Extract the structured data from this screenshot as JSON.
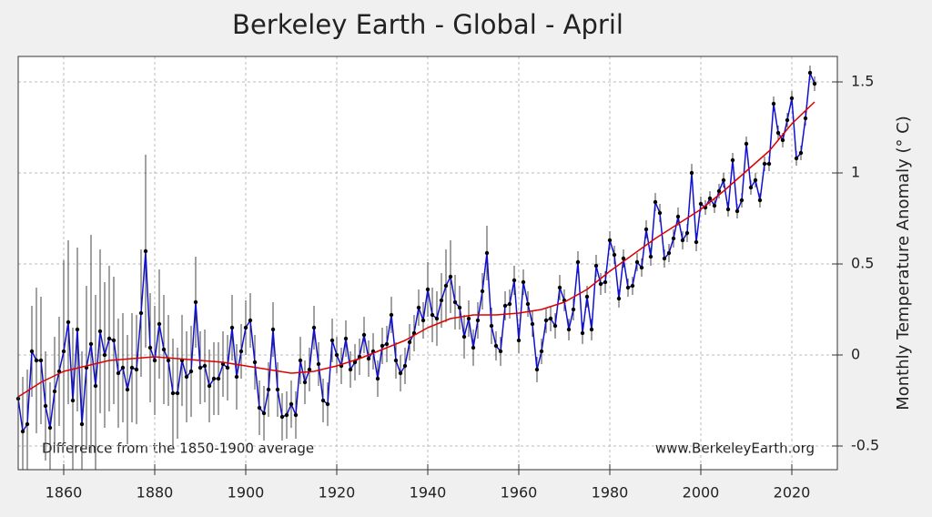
{
  "chart_data": {
    "type": "line",
    "title": "Berkeley Earth - Global - April",
    "y_label": "Monthly Temperature Anomaly (° C)",
    "annotations": [
      "Difference from the 1850-1900 average",
      "www.BerkeleyEarth.org"
    ],
    "xlim": [
      1850,
      2030
    ],
    "ylim": [
      -0.63,
      1.64
    ],
    "xticks": [
      1860,
      1880,
      1900,
      1920,
      1940,
      1960,
      1980,
      2000,
      2020
    ],
    "yticks": [
      -0.5,
      0,
      0.5,
      1,
      1.5
    ],
    "grid": true,
    "x": [
      1850,
      1851,
      1852,
      1853,
      1854,
      1855,
      1856,
      1857,
      1858,
      1859,
      1860,
      1861,
      1862,
      1863,
      1864,
      1865,
      1866,
      1867,
      1868,
      1869,
      1870,
      1871,
      1872,
      1873,
      1874,
      1875,
      1876,
      1877,
      1878,
      1879,
      1880,
      1881,
      1882,
      1883,
      1884,
      1885,
      1886,
      1887,
      1888,
      1889,
      1890,
      1891,
      1892,
      1893,
      1894,
      1895,
      1896,
      1897,
      1898,
      1899,
      1900,
      1901,
      1902,
      1903,
      1904,
      1905,
      1906,
      1907,
      1908,
      1909,
      1910,
      1911,
      1912,
      1913,
      1914,
      1915,
      1916,
      1917,
      1918,
      1919,
      1920,
      1921,
      1922,
      1923,
      1924,
      1925,
      1926,
      1927,
      1928,
      1929,
      1930,
      1931,
      1932,
      1933,
      1934,
      1935,
      1936,
      1937,
      1938,
      1939,
      1940,
      1941,
      1942,
      1943,
      1944,
      1945,
      1946,
      1947,
      1948,
      1949,
      1950,
      1951,
      1952,
      1953,
      1954,
      1955,
      1956,
      1957,
      1958,
      1959,
      1960,
      1961,
      1962,
      1963,
      1964,
      1965,
      1966,
      1967,
      1968,
      1969,
      1970,
      1971,
      1972,
      1973,
      1974,
      1975,
      1976,
      1977,
      1978,
      1979,
      1980,
      1981,
      1982,
      1983,
      1984,
      1985,
      1986,
      1987,
      1988,
      1989,
      1990,
      1991,
      1992,
      1993,
      1994,
      1995,
      1996,
      1997,
      1998,
      1999,
      2000,
      2001,
      2002,
      2003,
      2004,
      2005,
      2006,
      2007,
      2008,
      2009,
      2010,
      2011,
      2012,
      2013,
      2014,
      2015,
      2016,
      2017,
      2018,
      2019,
      2020,
      2021,
      2022,
      2023,
      2024,
      2025
    ],
    "series": [
      {
        "color": "#1010d0",
        "values": [
          -0.24,
          -0.42,
          -0.38,
          0.02,
          -0.03,
          -0.03,
          -0.28,
          -0.4,
          -0.2,
          -0.09,
          0.02,
          0.18,
          -0.25,
          0.14,
          -0.38,
          -0.07,
          0.06,
          -0.17,
          0.13,
          0.0,
          0.09,
          0.08,
          -0.1,
          -0.07,
          -0.19,
          -0.07,
          -0.08,
          0.23,
          0.57,
          0.04,
          -0.03,
          0.17,
          0.03,
          -0.03,
          -0.21,
          -0.21,
          -0.03,
          -0.12,
          -0.09,
          0.29,
          -0.07,
          -0.06,
          -0.17,
          -0.13,
          -0.13,
          -0.05,
          -0.07,
          0.15,
          -0.12,
          0.02,
          0.15,
          0.19,
          -0.04,
          -0.29,
          -0.32,
          -0.19,
          0.14,
          -0.19,
          -0.34,
          -0.33,
          -0.27,
          -0.33,
          -0.03,
          -0.15,
          -0.08,
          0.15,
          -0.05,
          -0.25,
          -0.27,
          0.08,
          0.0,
          -0.06,
          0.09,
          -0.08,
          -0.04,
          -0.01,
          0.11,
          -0.02,
          0.02,
          -0.13,
          0.05,
          0.06,
          0.22,
          -0.03,
          -0.1,
          -0.06,
          0.07,
          0.12,
          0.26,
          0.19,
          0.36,
          0.22,
          0.2,
          0.3,
          0.38,
          0.43,
          0.29,
          0.26,
          0.1,
          0.2,
          0.04,
          0.19,
          0.35,
          0.56,
          0.16,
          0.05,
          0.02,
          0.27,
          0.28,
          0.41,
          0.08,
          0.4,
          0.28,
          0.17,
          -0.08,
          0.02,
          0.19,
          0.2,
          0.16,
          0.37,
          0.3,
          0.14,
          0.25,
          0.51,
          0.12,
          0.32,
          0.14,
          0.49,
          0.39,
          0.4,
          0.63,
          0.55,
          0.31,
          0.53,
          0.37,
          0.38,
          0.51,
          0.48,
          0.69,
          0.54,
          0.84,
          0.78,
          0.53,
          0.56,
          0.64,
          0.76,
          0.63,
          0.67,
          1.0,
          0.62,
          0.83,
          0.81,
          0.86,
          0.82,
          0.9,
          0.96,
          0.8,
          1.07,
          0.79,
          0.85,
          1.16,
          0.92,
          0.96,
          0.85,
          1.05,
          1.05,
          1.38,
          1.22,
          1.18,
          1.29,
          1.41,
          1.08,
          1.11,
          1.3,
          1.55,
          1.49
        ],
        "errors": [
          0.35,
          0.3,
          0.3,
          0.25,
          0.4,
          0.35,
          0.3,
          0.25,
          0.3,
          0.3,
          0.5,
          0.45,
          0.4,
          0.45,
          0.4,
          0.45,
          0.6,
          0.5,
          0.45,
          0.4,
          0.4,
          0.35,
          0.3,
          0.3,
          0.3,
          0.3,
          0.3,
          0.35,
          0.53,
          0.3,
          0.3,
          0.3,
          0.3,
          0.25,
          0.3,
          0.25,
          0.25,
          0.25,
          0.25,
          0.25,
          0.2,
          0.2,
          0.2,
          0.2,
          0.2,
          0.18,
          0.18,
          0.18,
          0.18,
          0.15,
          0.15,
          0.15,
          0.15,
          0.15,
          0.15,
          0.15,
          0.15,
          0.15,
          0.13,
          0.13,
          0.13,
          0.13,
          0.13,
          0.12,
          0.12,
          0.12,
          0.12,
          0.12,
          0.12,
          0.12,
          0.1,
          0.1,
          0.1,
          0.1,
          0.1,
          0.1,
          0.1,
          0.1,
          0.1,
          0.1,
          0.1,
          0.1,
          0.1,
          0.1,
          0.1,
          0.1,
          0.1,
          0.1,
          0.1,
          0.1,
          0.15,
          0.15,
          0.15,
          0.15,
          0.2,
          0.2,
          0.15,
          0.12,
          0.12,
          0.1,
          0.1,
          0.1,
          0.1,
          0.15,
          0.1,
          0.08,
          0.08,
          0.08,
          0.08,
          0.08,
          0.07,
          0.07,
          0.07,
          0.07,
          0.07,
          0.07,
          0.07,
          0.07,
          0.07,
          0.07,
          0.06,
          0.06,
          0.06,
          0.06,
          0.06,
          0.06,
          0.06,
          0.06,
          0.06,
          0.06,
          0.05,
          0.05,
          0.05,
          0.05,
          0.05,
          0.05,
          0.05,
          0.05,
          0.05,
          0.05,
          0.05,
          0.05,
          0.05,
          0.05,
          0.05,
          0.05,
          0.05,
          0.05,
          0.05,
          0.05,
          0.04,
          0.04,
          0.04,
          0.04,
          0.04,
          0.04,
          0.04,
          0.04,
          0.04,
          0.04,
          0.04,
          0.04,
          0.04,
          0.04,
          0.04,
          0.04,
          0.04,
          0.04,
          0.04,
          0.04,
          0.04,
          0.04,
          0.04,
          0.04,
          0.04,
          0.04
        ]
      }
    ],
    "trend": {
      "color": "#dd0000",
      "x": [
        1850,
        1855,
        1860,
        1865,
        1870,
        1875,
        1880,
        1885,
        1890,
        1895,
        1900,
        1905,
        1910,
        1915,
        1920,
        1925,
        1930,
        1935,
        1940,
        1945,
        1950,
        1955,
        1960,
        1965,
        1970,
        1975,
        1980,
        1985,
        1990,
        1995,
        2000,
        2005,
        2010,
        2015,
        2020,
        2025
      ],
      "values": [
        -0.23,
        -0.15,
        -0.09,
        -0.06,
        -0.03,
        -0.02,
        -0.01,
        -0.02,
        -0.03,
        -0.04,
        -0.06,
        -0.08,
        -0.1,
        -0.09,
        -0.06,
        -0.02,
        0.03,
        0.08,
        0.15,
        0.2,
        0.22,
        0.22,
        0.23,
        0.25,
        0.29,
        0.36,
        0.46,
        0.55,
        0.64,
        0.72,
        0.8,
        0.9,
        1.01,
        1.12,
        1.27,
        1.39
      ]
    }
  }
}
